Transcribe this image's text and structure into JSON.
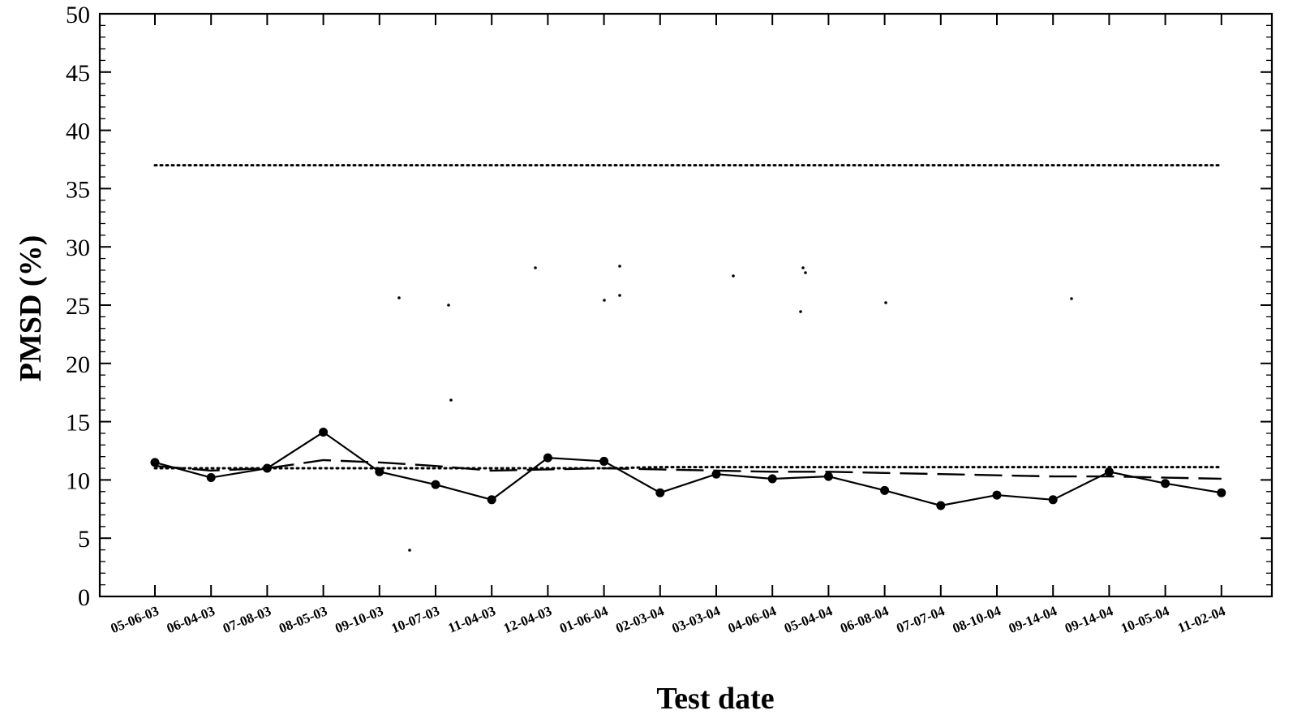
{
  "chart_data": {
    "type": "line",
    "title": "",
    "xlabel": "Test date",
    "ylabel": "PMSD (%)",
    "ylim": [
      0,
      50
    ],
    "yticks": [
      0,
      5,
      10,
      15,
      20,
      25,
      30,
      35,
      40,
      45,
      50
    ],
    "categories": [
      "05-06-03",
      "06-04-03",
      "07-08-03",
      "08-05-03",
      "09-10-03",
      "10-07-03",
      "11-04-03",
      "12-04-03",
      "01-06-04",
      "02-03-04",
      "03-03-04",
      "04-06-04",
      "05-04-04",
      "06-08-04",
      "07-07-04",
      "08-10-04",
      "09-14-04",
      "09-14-04",
      "10-05-04",
      "11-02-04"
    ],
    "series": [
      {
        "style": "solid-with-markers",
        "values": [
          11.5,
          10.2,
          11.0,
          14.1,
          10.7,
          9.6,
          8.3,
          11.9,
          11.6,
          8.9,
          10.5,
          10.1,
          10.3,
          9.1,
          7.8,
          8.7,
          8.3,
          10.7,
          9.7,
          8.9
        ]
      },
      {
        "style": "dashed",
        "values": [
          11.2,
          10.8,
          11.0,
          11.7,
          11.5,
          11.2,
          10.8,
          10.9,
          11.0,
          10.9,
          10.8,
          10.7,
          10.7,
          10.6,
          10.5,
          10.4,
          10.3,
          10.3,
          10.2,
          10.1
        ]
      },
      {
        "style": "dotted",
        "values": [
          37.0,
          37.0,
          37.0,
          37.0,
          37.0,
          37.0,
          37.0,
          37.0,
          37.0,
          37.0,
          37.0,
          37.0,
          37.0,
          37.0,
          37.0,
          37.0,
          37.0,
          37.0,
          37.0,
          37.0
        ]
      },
      {
        "style": "dotted",
        "values": [
          11.0,
          11.0,
          11.0,
          11.0,
          11.0,
          11.0,
          11.0,
          11.0,
          11.0,
          11.1,
          11.1,
          11.1,
          11.1,
          11.1,
          11.1,
          11.1,
          11.1,
          11.1,
          11.1,
          11.1
        ]
      }
    ],
    "grid": false,
    "legend": "none"
  }
}
